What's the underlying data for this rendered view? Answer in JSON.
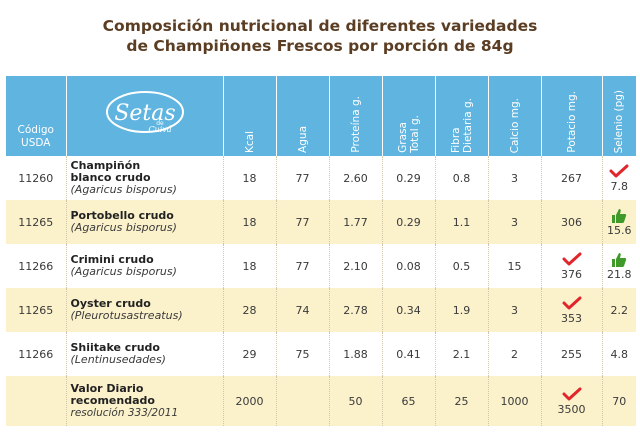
{
  "title_line1": "Composición nutricional de diferentes variedades",
  "title_line2": "de Champiñones Frescos por porción de 84g",
  "headers": {
    "codigo_1": "Código",
    "codigo_2": "USDA",
    "logo_1": "Setas",
    "logo_2": "de",
    "logo_3": "Cuivá",
    "kcal": "Kcal",
    "agua": "Agua",
    "proteina": "Proteína g.",
    "grasa_1": "Grasa",
    "grasa_2": "Total g.",
    "fibra_1": "Fibra",
    "fibra_2": "Dietaria g.",
    "calcio": "Calcio mg.",
    "potasio": "Potacio mg.",
    "selenio": "Selenio (pg)"
  },
  "rows": [
    {
      "code": "11260",
      "name_1": "Champiñón",
      "name_2": "blanco crudo",
      "sci": "(Agaricus bisporus)",
      "kcal": "18",
      "agua": "77",
      "proteina": "2.60",
      "grasa": "0.29",
      "fibra": "0.8",
      "calcio": "3",
      "potasio": "267",
      "selenio": "7.8"
    },
    {
      "code": "11265",
      "name_1": "Portobello crudo",
      "name_2": "",
      "sci": "(Agaricus bisporus)",
      "kcal": "18",
      "agua": "77",
      "proteina": "1.77",
      "grasa": "0.29",
      "fibra": "1.1",
      "calcio": "3",
      "potasio": "306",
      "selenio": "15.6"
    },
    {
      "code": "11266",
      "name_1": "Crimini crudo",
      "name_2": "",
      "sci": "(Agaricus bisporus)",
      "kcal": "18",
      "agua": "77",
      "proteina": "2.10",
      "grasa": "0.08",
      "fibra": "0.5",
      "calcio": "15",
      "potasio": "376",
      "selenio": "21.8"
    },
    {
      "code": "11265",
      "name_1": "Oyster crudo",
      "name_2": "",
      "sci": "(Pleurotusastreatus)",
      "kcal": "28",
      "agua": "74",
      "proteina": "2.78",
      "grasa": "0.34",
      "fibra": "1.9",
      "calcio": "3",
      "potasio": "353",
      "selenio": "2.2"
    },
    {
      "code": "11266",
      "name_1": "Shiitake crudo",
      "name_2": "",
      "sci": "(Lentinusedades)",
      "kcal": "29",
      "agua": "75",
      "proteina": "1.88",
      "grasa": "0.41",
      "fibra": "2.1",
      "calcio": "2",
      "potasio": "255",
      "selenio": "4.8"
    },
    {
      "code": "",
      "name_1": "Valor Diario",
      "name_2": "recomendado",
      "sci": "resolución 333/2011",
      "kcal": "2000",
      "agua": "",
      "proteina": "50",
      "grasa": "65",
      "fibra": "25",
      "calcio": "1000",
      "potasio": "3500",
      "selenio": "70"
    }
  ],
  "icons": {
    "check": "check-mark-icon",
    "thumb": "thumbs-up-icon",
    "check_color": "#e0252b",
    "thumb_color": "#3f9a2a"
  }
}
